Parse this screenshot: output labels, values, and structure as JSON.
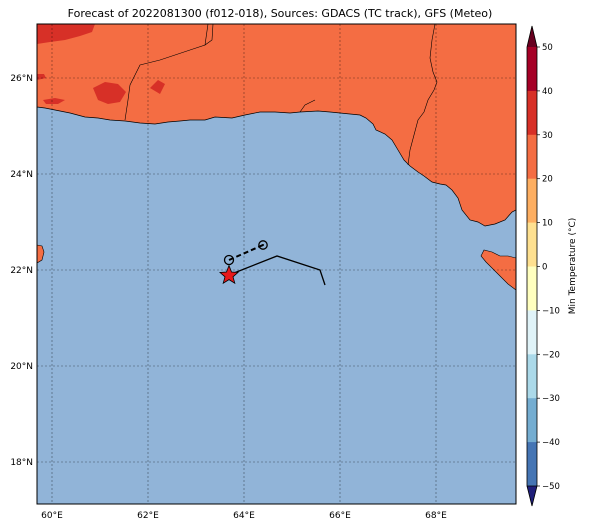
{
  "title": "Forecast of 2022081300 (f012-018), Sources: GDACS (TC track), GFS (Meteo)",
  "map": {
    "lon_labels": [
      "60°E",
      "62°E",
      "64°E",
      "66°E",
      "68°E"
    ],
    "lat_labels": [
      "18°N",
      "20°N",
      "22°N",
      "24°N",
      "26°N"
    ],
    "ocean_color": "#91b4d8",
    "land_color": "#f46d43",
    "hot_land_color": "#d73027"
  },
  "colorbar": {
    "label": "Min Temperature (°C)",
    "ticks": [
      "50",
      "40",
      "30",
      "20",
      "10",
      "0",
      "−10",
      "−20",
      "−30",
      "−40",
      "−50"
    ],
    "colors": [
      "#67001f",
      "#a50026",
      "#d73027",
      "#f46d43",
      "#fdae61",
      "#fee090",
      "#ffffbf",
      "#e0f3f8",
      "#abd9e9",
      "#74add1",
      "#4575b4",
      "#313695",
      "#1f1f7a"
    ]
  },
  "track": {
    "current_marker": "red-star",
    "forecast_markers": [
      "circle",
      "circle-dot"
    ]
  }
}
